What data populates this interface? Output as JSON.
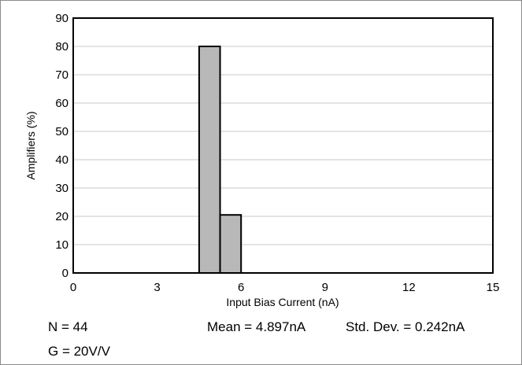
{
  "chart_data": {
    "type": "bar",
    "title": "",
    "xlabel": "Input Bias Current (nA)",
    "ylabel": "Amplifiers (%)",
    "xlim": [
      0,
      15
    ],
    "ylim": [
      0,
      90
    ],
    "xticks": [
      0,
      3,
      6,
      9,
      12,
      15
    ],
    "yticks": [
      0,
      10,
      20,
      30,
      40,
      50,
      60,
      70,
      80,
      90
    ],
    "grid": "horizontal",
    "legend": "none",
    "bins": [
      {
        "x_start": 4.5,
        "x_end": 5.25,
        "value": 80
      },
      {
        "x_start": 5.25,
        "x_end": 6.0,
        "value": 20.5
      }
    ],
    "bar_color": "#b8b8b8",
    "bar_edge_color": "#000000",
    "grid_color": "#c8c8c8"
  },
  "stats": {
    "n": "N = 44",
    "mean": "Mean = 4.897nA",
    "std_dev": "Std. Dev. = 0.242nA",
    "gain": "G = 20V/V"
  }
}
